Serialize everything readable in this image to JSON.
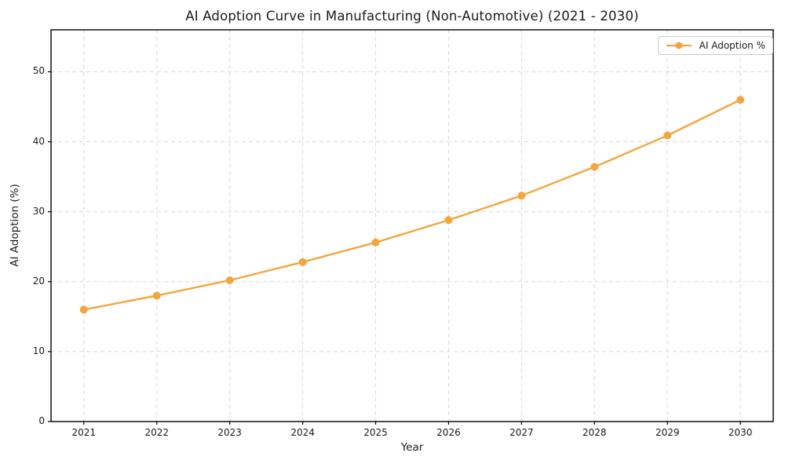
{
  "figure": {
    "title": "AI Adoption Curve in Manufacturing (Non-Automotive) (2021 - 2030)",
    "xlabel": "Year",
    "ylabel": "AI Adoption (%)",
    "colors": {
      "line": "#F2A63F",
      "marker": "#F2A63F",
      "grid": "#d8d8d8",
      "axis": "#000000",
      "text": "#1a1a1a",
      "legend_border": "#cccccc"
    }
  },
  "chart_data": {
    "type": "line",
    "x": [
      2021,
      2022,
      2023,
      2024,
      2025,
      2026,
      2027,
      2028,
      2029,
      2030
    ],
    "series": [
      {
        "name": "AI Adoption %",
        "values": [
          16.0,
          18.0,
          20.2,
          22.8,
          25.6,
          28.8,
          32.3,
          36.4,
          40.9,
          46.0
        ]
      }
    ],
    "title": "AI Adoption Curve in Manufacturing (Non-Automotive) (2021 - 2030)",
    "xlabel": "Year",
    "ylabel": "AI Adoption (%)",
    "xlim": [
      2020.55,
      2030.45
    ],
    "ylim": [
      0,
      56
    ],
    "yticks": [
      0,
      10,
      20,
      30,
      40,
      50
    ],
    "xticks": [
      2021,
      2022,
      2023,
      2024,
      2025,
      2026,
      2027,
      2028,
      2029,
      2030
    ],
    "grid": true,
    "grid_style": "dashed",
    "marker": "o",
    "legend_position": "upper right",
    "legend_entries": [
      "AI Adoption %"
    ]
  }
}
